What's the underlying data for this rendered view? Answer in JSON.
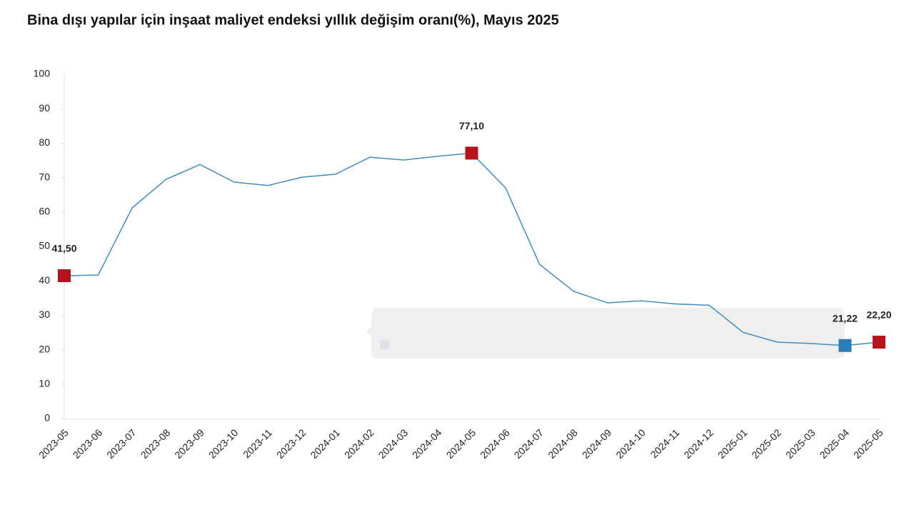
{
  "chart_data": {
    "type": "line",
    "title": "Bina dışı yapılar için inşaat maliyet endeksi yıllık değişim oranı(%), Mayıs 2025",
    "categories": [
      "2023-05",
      "2023-06",
      "2023-07",
      "2023-08",
      "2023-09",
      "2023-10",
      "2023-11",
      "2023-12",
      "2024-01",
      "2024-02",
      "2024-03",
      "2024-04",
      "2024-05",
      "2024-06",
      "2024-07",
      "2024-08",
      "2024-09",
      "2024-10",
      "2024-11",
      "2024-12",
      "2025-01",
      "2025-02",
      "2025-03",
      "2025-04",
      "2025-05"
    ],
    "values": [
      41.5,
      41.7,
      61.2,
      69.5,
      73.8,
      68.7,
      67.7,
      70.1,
      71.0,
      75.9,
      75.1,
      76.2,
      77.1,
      67.0,
      44.8,
      37.0,
      33.6,
      34.2,
      33.3,
      32.9,
      25.0,
      22.2,
      21.8,
      21.22,
      22.2
    ],
    "value_labels": [
      "41,50",
      null,
      null,
      null,
      null,
      null,
      null,
      null,
      null,
      null,
      null,
      null,
      "77,10",
      null,
      null,
      null,
      null,
      null,
      null,
      null,
      null,
      null,
      null,
      "21,22",
      "22,20"
    ],
    "marker_colors": [
      "#b5121b",
      null,
      null,
      null,
      null,
      null,
      null,
      null,
      null,
      null,
      null,
      null,
      "#b5121b",
      null,
      null,
      null,
      null,
      null,
      null,
      null,
      null,
      null,
      null,
      "#2e7bb8",
      "#b5121b"
    ],
    "color": "#3f8dc2",
    "ylim": [
      0,
      100
    ],
    "yticks": [
      0,
      10,
      20,
      30,
      40,
      50,
      60,
      70,
      80,
      90,
      100
    ]
  }
}
